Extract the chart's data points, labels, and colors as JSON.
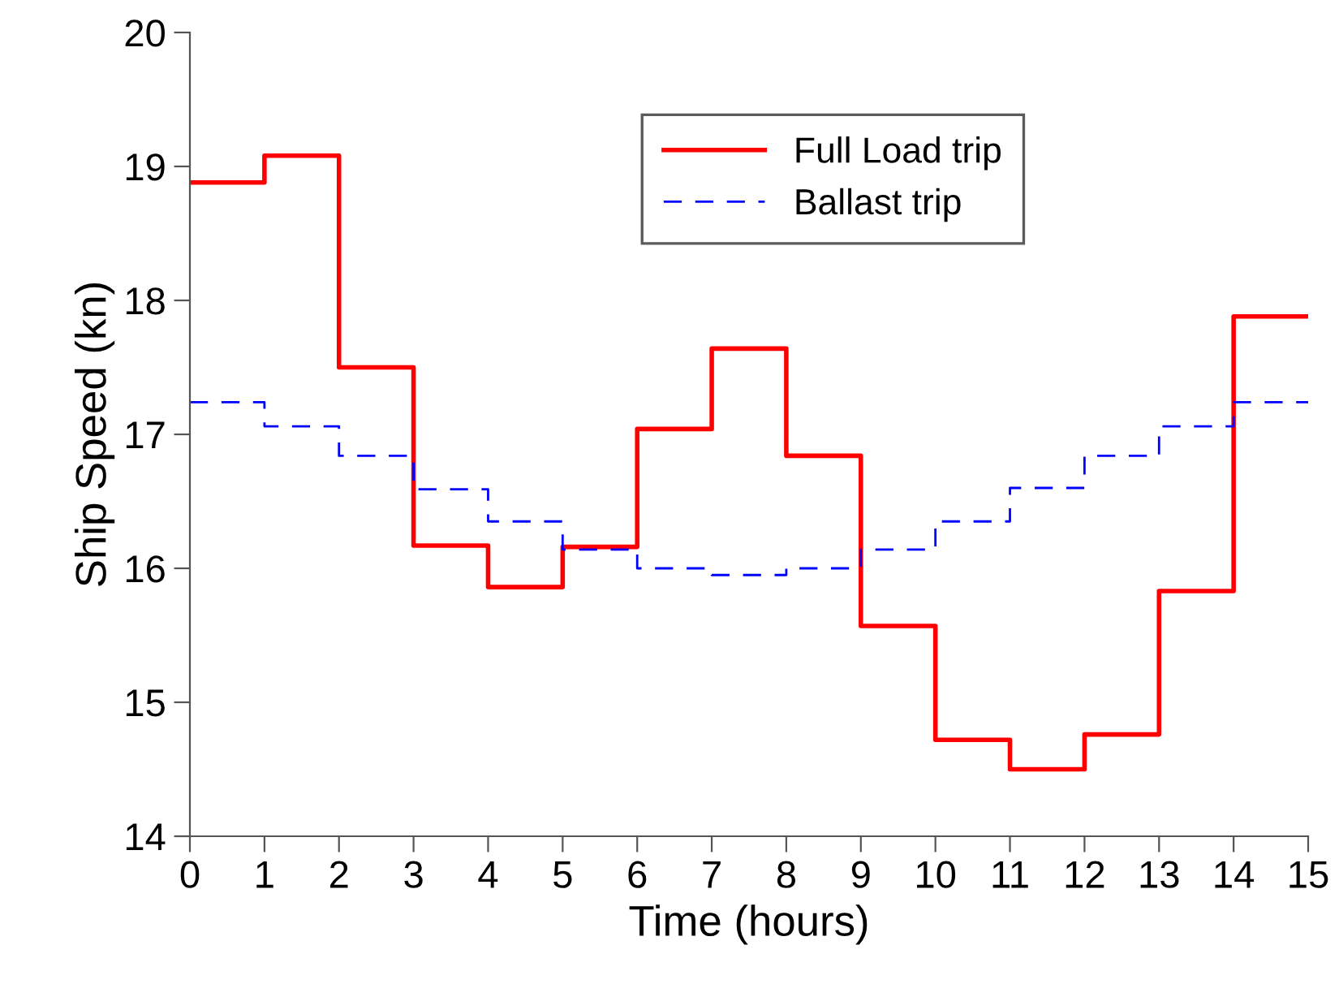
{
  "chart_data": {
    "type": "step",
    "xlabel": "Time (hours)",
    "ylabel": "Ship Speed (kn)",
    "x": [
      0,
      1,
      2,
      3,
      4,
      5,
      6,
      7,
      8,
      9,
      10,
      11,
      12,
      13,
      14,
      15
    ],
    "series": [
      {
        "name": "Full Load trip",
        "color": "#ff0000",
        "line_style": "solid",
        "values": [
          18.88,
          19.08,
          17.5,
          16.17,
          15.86,
          16.16,
          17.04,
          17.64,
          16.84,
          15.57,
          14.72,
          14.5,
          14.76,
          15.83,
          17.88,
          17.88
        ]
      },
      {
        "name": "Ballast trip",
        "color": "#0000ff",
        "line_style": "dashed",
        "values": [
          17.24,
          17.06,
          16.84,
          16.59,
          16.35,
          16.14,
          16.0,
          15.95,
          16.0,
          16.14,
          16.35,
          16.6,
          16.84,
          17.06,
          17.24,
          17.24
        ]
      }
    ],
    "xlim": [
      0,
      15
    ],
    "xticks": [
      0,
      1,
      2,
      3,
      4,
      5,
      6,
      7,
      8,
      9,
      10,
      11,
      12,
      13,
      14,
      15
    ],
    "ylim": [
      14,
      20
    ],
    "yticks": [
      14,
      15,
      16,
      17,
      18,
      19,
      20
    ],
    "grid": false,
    "legend": "top"
  }
}
